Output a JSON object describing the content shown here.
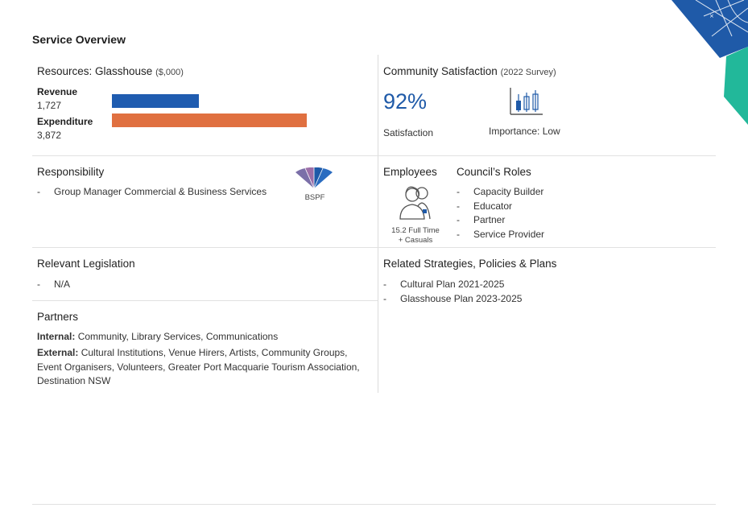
{
  "page_title": "Service Overview",
  "resources": {
    "heading": "Resources: Glasshouse",
    "unit": "($,000)",
    "items": [
      {
        "label": "Revenue",
        "value": "1,727",
        "amount": 1727,
        "color": "#1f5cb0"
      },
      {
        "label": "Expenditure",
        "value": "3,872",
        "amount": 3872,
        "color": "#e07040"
      }
    ]
  },
  "satisfaction": {
    "heading": "Community Satisfaction",
    "survey": "(2022 Survey)",
    "percent": "92%",
    "percent_label": "Satisfaction",
    "importance": "Importance: Low"
  },
  "responsibility": {
    "heading": "Responsibility",
    "items": [
      "Group Manager Commercial & Business Services"
    ],
    "badge": "BSPF"
  },
  "employees": {
    "heading": "Employees",
    "count_line1": "15.2 Full Time",
    "count_line2": "+ Casuals"
  },
  "roles": {
    "heading": "Council’s Roles",
    "items": [
      "Capacity Builder",
      "Educator",
      "Partner",
      "Service Provider"
    ]
  },
  "legislation": {
    "heading": "Relevant Legislation",
    "items": [
      "N/A"
    ]
  },
  "strategies": {
    "heading": "Related Strategies, Policies & Plans",
    "items": [
      "Cultural Plan 2021-2025",
      "Glasshouse Plan 2023-2025"
    ]
  },
  "partners": {
    "heading": "Partners",
    "internal_label": "Internal:",
    "internal_text": "Community, Library Services, Communications",
    "external_label": "External:",
    "external_text": "Cultural Institutions, Venue Hirers, Artists, Community Groups, Event Organisers, Volunteers, Greater Port Macquarie Tourism Association, Destination NSW"
  },
  "colors": {
    "accent_blue": "#1f5cb0",
    "accent_orange": "#e07040",
    "accent_teal": "#22b89a"
  },
  "icons": [
    "candlestick-chart-icon",
    "employee-people-icon",
    "fan-segment-icon",
    "corner-decoration"
  ]
}
